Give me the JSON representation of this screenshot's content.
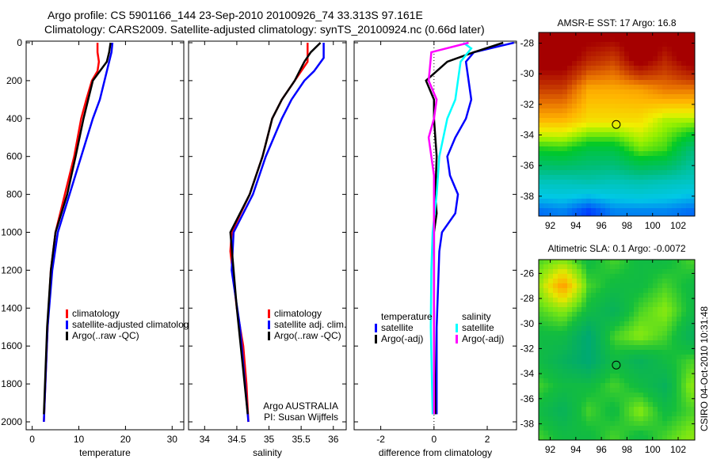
{
  "title_line1": "Argo profile: CS 5901166_144 23-Sep-2010 20100926_74 33.313S 97.161E",
  "title_line2": "Climatology: CARS2009. Satellite-adjusted climatology: synTS_20100924.nc (0.66d later)",
  "side_text": "CSIRO 04-Oct-2010 10:31:48",
  "colors": {
    "climatology": "#ff0000",
    "satellite": "#0000ff",
    "argo": "#000000",
    "sal_satellite": "#00ffff",
    "sal_argo": "#ff00ff"
  },
  "chart_data": [
    {
      "type": "line",
      "xlabel": "temperature",
      "ylim": [
        0,
        2000
      ],
      "yticks": [
        0,
        200,
        400,
        600,
        800,
        1000,
        1200,
        1400,
        1600,
        1800,
        2000
      ],
      "xlim": [
        -1.3,
        32.5
      ],
      "xticks": [
        0,
        10,
        20,
        30
      ],
      "legend": {
        "placement": "lower-right",
        "entries": [
          "climatology",
          "satellite-adjusted climatolog",
          "Argo(..raw -QC)"
        ]
      },
      "series": [
        {
          "name": "climatology",
          "color": "#ff0000",
          "depth": [
            0,
            50,
            100,
            150,
            200,
            300,
            400,
            600,
            800,
            1000,
            1200,
            1500,
            2000
          ],
          "values": [
            14,
            14,
            14.3,
            14,
            12.8,
            11.6,
            10.5,
            9,
            7,
            5,
            4,
            3.3,
            2.5
          ]
        },
        {
          "name": "satellite-adjusted climatology",
          "color": "#0000ff",
          "depth": [
            0,
            50,
            100,
            200,
            300,
            400,
            600,
            800,
            1000,
            1200,
            1500,
            2000
          ],
          "values": [
            17.2,
            17,
            16.5,
            15.5,
            14.5,
            13,
            10.5,
            8,
            5.5,
            4.3,
            3.3,
            2.5
          ]
        },
        {
          "name": "Argo",
          "color": "#000000",
          "depth": [
            0,
            50,
            100,
            150,
            200,
            300,
            400,
            600,
            800,
            1000,
            1200,
            1500,
            1960
          ],
          "values": [
            16.8,
            16.5,
            16,
            14.5,
            13,
            12,
            11,
            9.3,
            7.5,
            5,
            4,
            3.2,
            2.5
          ]
        }
      ]
    },
    {
      "type": "line",
      "xlabel": "salinity",
      "ylim": [
        0,
        2000
      ],
      "xlim": [
        33.75,
        36.2
      ],
      "xticks": [
        34,
        34.5,
        35,
        35.5,
        36
      ],
      "legend": {
        "placement": "lower-right",
        "entries": [
          "climatology",
          "satellite adj. clim.",
          "Argo(..raw -QC)"
        ]
      },
      "annotation": [
        "Argo AUSTRALIA",
        "PI: Susan Wijffels"
      ],
      "series": [
        {
          "name": "climatology",
          "color": "#ff0000",
          "depth": [
            0,
            100,
            200,
            300,
            400,
            600,
            800,
            1000,
            1100,
            1400,
            1600,
            1800,
            2000
          ],
          "values": [
            35.6,
            35.6,
            35.4,
            35.2,
            35.05,
            34.9,
            34.7,
            34.42,
            34.4,
            34.5,
            34.6,
            34.65,
            34.68
          ]
        },
        {
          "name": "satellite adj. clim.",
          "color": "#0000ff",
          "depth": [
            0,
            80,
            150,
            200,
            300,
            400,
            600,
            800,
            1000,
            1200,
            1500,
            2000
          ],
          "values": [
            35.85,
            35.85,
            35.7,
            35.55,
            35.35,
            35.2,
            34.95,
            34.75,
            34.45,
            34.42,
            34.55,
            34.68
          ]
        },
        {
          "name": "Argo",
          "color": "#000000",
          "depth": [
            0,
            50,
            100,
            200,
            300,
            400,
            600,
            800,
            1000,
            1400,
            1960
          ],
          "values": [
            35.8,
            35.65,
            35.55,
            35.4,
            35.2,
            35.05,
            34.9,
            34.7,
            34.4,
            34.5,
            34.67
          ]
        }
      ]
    },
    {
      "type": "line",
      "xlabel": "difference from climatology",
      "ylim": [
        0,
        2000
      ],
      "xlim": [
        -3,
        3.1
      ],
      "xticks": [
        -2,
        0,
        2
      ],
      "legend": {
        "placement": "lower-right",
        "headers": [
          "temperature",
          "salinity"
        ],
        "entries": [
          "satellite",
          "Argo(-adj)",
          "satellite",
          "Argo(-adj)"
        ]
      },
      "series": [
        {
          "name": "temperature satellite",
          "color": "#0000ff",
          "depth": [
            0,
            50,
            100,
            200,
            300,
            400,
            500,
            600,
            700,
            800,
            900,
            1000,
            1100,
            1500,
            1960
          ],
          "values": [
            3,
            1.5,
            1.2,
            1.3,
            1.4,
            1.2,
            0.8,
            0.5,
            0.6,
            0.9,
            0.8,
            0.3,
            0.2,
            0.1,
            0.1
          ]
        },
        {
          "name": "temperature Argo(-adj)",
          "color": "#000000",
          "depth": [
            0,
            50,
            100,
            200,
            300,
            400,
            600,
            800,
            900,
            1000,
            1500,
            1960
          ],
          "values": [
            2.6,
            1.5,
            0.5,
            -0.3,
            0,
            0,
            0.1,
            0.05,
            0.1,
            0,
            0,
            0.05
          ]
        },
        {
          "name": "salinity satellite",
          "color": "#00ffff",
          "depth": [
            0,
            30,
            100,
            300,
            400,
            600,
            800,
            1000,
            1200,
            1500,
            1960
          ],
          "values": [
            1.1,
            1.4,
            1.0,
            0.8,
            0.5,
            0.2,
            0.1,
            -0.05,
            -0.1,
            -0.12,
            -0.05
          ]
        },
        {
          "name": "salinity Argo(-adj)",
          "color": "#ff00ff",
          "depth": [
            0,
            50,
            200,
            300,
            400,
            500,
            700,
            1000,
            1960
          ],
          "values": [
            1.3,
            -0.1,
            -0.2,
            0.1,
            0,
            -0.2,
            0,
            0,
            0
          ]
        }
      ]
    },
    {
      "type": "heatmap",
      "title": "AMSR-E SST: 17 Argo: 16.8",
      "xlim": [
        91.1,
        103.3
      ],
      "ylim": [
        -39.3,
        -27.3
      ],
      "xticks": [
        92,
        94,
        96,
        98,
        100,
        102
      ],
      "yticks": [
        -28,
        -30,
        -32,
        -34,
        -36,
        -38
      ],
      "argo_position": [
        97.161,
        -33.313
      ],
      "grid_lon": [
        91,
        93,
        95,
        97,
        99,
        101,
        103
      ],
      "grid_lat": [
        -27,
        -29,
        -31,
        -33,
        -35,
        -37,
        -39
      ],
      "values": [
        [
          20,
          20,
          20,
          20,
          20,
          20,
          20
        ],
        [
          20,
          20,
          19,
          18.6,
          20,
          19,
          20
        ],
        [
          18.6,
          18.6,
          17.5,
          17.5,
          17.6,
          18,
          18
        ],
        [
          17.4,
          17.4,
          17,
          17,
          17,
          16.5,
          16.5
        ],
        [
          15.8,
          15.9,
          15.5,
          15.5,
          16.2,
          16,
          15
        ],
        [
          14.5,
          14.5,
          14.6,
          14.5,
          14.6,
          14.5,
          14.4
        ],
        [
          13.7,
          13.8,
          13.5,
          13.8,
          13.8,
          13.8,
          13.7
        ]
      ],
      "crange": [
        13.5,
        19.5
      ]
    },
    {
      "type": "heatmap",
      "title": "Altimetric SLA: 0.1 Argo: -0.0072",
      "xlim": [
        91.1,
        103.3
      ],
      "ylim": [
        -39.3,
        -24.9
      ],
      "xticks": [
        92,
        94,
        96,
        98,
        100,
        102
      ],
      "yticks": [
        -26,
        -28,
        -30,
        -32,
        -34,
        -36,
        -38
      ],
      "argo_position": [
        97.161,
        -33.313
      ],
      "grid_lon": [
        91,
        93,
        95,
        97,
        99,
        101,
        103
      ],
      "grid_lat": [
        -25,
        -27,
        -29,
        -31,
        -33,
        -35,
        -37,
        -39
      ],
      "values": [
        [
          0.05,
          0.1,
          0,
          0.05,
          0,
          0,
          0.05
        ],
        [
          0.1,
          0.32,
          0.05,
          0,
          0,
          0.05,
          0
        ],
        [
          0.05,
          0.1,
          0,
          -0.05,
          0.05,
          0.1,
          0
        ],
        [
          0,
          0,
          -0.1,
          0.05,
          0.1,
          0.05,
          -0.05
        ],
        [
          0,
          -0.05,
          -0.1,
          0,
          -0.05,
          0,
          0.05
        ],
        [
          0.05,
          0,
          0,
          0.05,
          0,
          -0.05,
          0.1
        ],
        [
          0,
          -0.05,
          0.05,
          0,
          0.1,
          0,
          0.05
        ],
        [
          0.05,
          0,
          0,
          0.05,
          0,
          0.05,
          0.1
        ]
      ],
      "crange": [
        -0.3,
        0.4
      ]
    }
  ]
}
